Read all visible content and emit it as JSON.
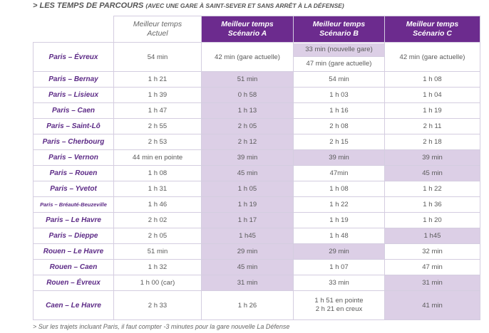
{
  "heading": {
    "title": "> LES TEMPS DE PARCOURS",
    "subtitle": "(AVEC UNE GARE À SAINT-SEVER ET SANS ARRÊT À LA DÉFENSE)"
  },
  "columns": {
    "actuel": [
      "Meilleur temps",
      "Actuel"
    ],
    "scenario_a": [
      "Meilleur temps",
      "Scénario A"
    ],
    "scenario_b": [
      "Meilleur temps",
      "Scénario B"
    ],
    "scenario_c": [
      "Meilleur temps",
      "Scénario C"
    ]
  },
  "rows": [
    {
      "route": "Paris – Évreux",
      "actuel": "54 min",
      "a": "42 min (gare actuelle)",
      "b1": "33 min (nouvelle gare)",
      "b2": "47 min (gare actuelle)",
      "c": "42 min (gare actuelle)"
    },
    {
      "route": "Paris – Bernay",
      "actuel": "1 h 21",
      "a": "51 min",
      "b": "54 min",
      "c": "1 h 08"
    },
    {
      "route": "Paris – Lisieux",
      "actuel": "1 h 39",
      "a": "0 h 58",
      "b": "1 h 03",
      "c": "1 h 04"
    },
    {
      "route": "Paris – Caen",
      "actuel": "1 h 47",
      "a": "1 h 13",
      "b": "1 h 16",
      "c": "1 h 19"
    },
    {
      "route": "Paris – Saint-Lô",
      "actuel": "2 h 55",
      "a": "2 h 05",
      "b": "2 h 08",
      "c": "2 h 11"
    },
    {
      "route": "Paris – Cherbourg",
      "actuel": "2 h 53",
      "a": "2 h 12",
      "b": "2 h 15",
      "c": "2 h 18"
    },
    {
      "route": "Paris – Vernon",
      "actuel": "44 min en pointe",
      "a": "39 min",
      "b": "39 min",
      "c": "39 min"
    },
    {
      "route": "Paris – Rouen",
      "actuel": "1 h 08",
      "a": "45 min",
      "b": "47min",
      "c": "45 min"
    },
    {
      "route": "Paris – Yvetot",
      "actuel": "1 h 31",
      "a": "1 h 05",
      "b": "1 h 08",
      "c": "1 h 22"
    },
    {
      "route": "Paris – Bréauté-Beuzeville",
      "actuel": "1 h 46",
      "a": "1 h 19",
      "b": "1 h 22",
      "c": "1 h 36"
    },
    {
      "route": "Paris – Le Havre",
      "actuel": "2 h 02",
      "a": "1 h 17",
      "b": "1 h 19",
      "c": "1 h 20"
    },
    {
      "route": "Paris – Dieppe",
      "actuel": "2 h 05",
      "a": "1 h45",
      "b": "1 h 48",
      "c": "1 h45"
    },
    {
      "route": "Rouen – Le Havre",
      "actuel": "51 min",
      "a": "29 min",
      "b": "29 min",
      "c": "32 min"
    },
    {
      "route": "Rouen – Caen",
      "actuel": "1 h 32",
      "a": "45 min",
      "b": "1 h 07",
      "c": "47 min"
    },
    {
      "route": "Rouen – Évreux",
      "actuel": "1 h 00 (car)",
      "a": "31 min",
      "b": "33 min",
      "c": "31 min"
    },
    {
      "route": "Caen – Le Havre",
      "actuel": "2 h 33",
      "a": "1 h 26",
      "b1": "1 h 51 en pointe",
      "b2": "2 h 21 en creux",
      "c": "41 min"
    }
  ],
  "footnote": "> Sur les trajets incluant Paris, il faut compter -3 minutes pour la gare nouvelle La Défense",
  "colors": {
    "accent": "#6c2b8e",
    "highlight": "#dccfe6",
    "route_text": "#5c2a86"
  }
}
